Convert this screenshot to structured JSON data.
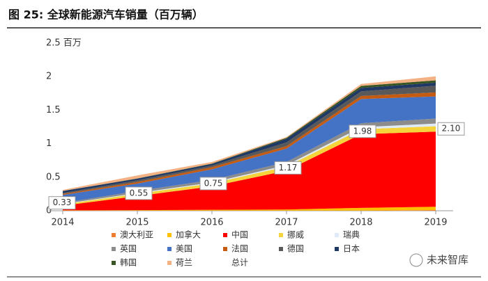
{
  "chart_data": {
    "type": "stacked-area",
    "title": "图 25: 全球新能源汽车销量（百万辆）",
    "categories": [
      "2014",
      "2015",
      "2016",
      "2017",
      "2018",
      "2019"
    ],
    "series": [
      {
        "name": "澳大利亚",
        "color": "#ed7d31",
        "values": [
          0.001,
          0.002,
          0.002,
          0.002,
          0.003,
          0.01
        ]
      },
      {
        "name": "加拿大",
        "color": "#ffc000",
        "values": [
          0.005,
          0.007,
          0.012,
          0.016,
          0.04,
          0.05
        ]
      },
      {
        "name": "中国",
        "color": "#ff0000",
        "values": [
          0.07,
          0.21,
          0.35,
          0.58,
          1.1,
          1.12
        ]
      },
      {
        "name": "挪威",
        "color": "#f5d33b",
        "values": [
          0.02,
          0.035,
          0.045,
          0.062,
          0.073,
          0.08
        ]
      },
      {
        "name": "瑞典",
        "color": "#deebf7",
        "values": [
          0.005,
          0.01,
          0.013,
          0.02,
          0.03,
          0.04
        ]
      },
      {
        "name": "英国",
        "color": "#8c8c8c",
        "values": [
          0.015,
          0.03,
          0.037,
          0.047,
          0.06,
          0.075
        ]
      },
      {
        "name": "美国",
        "color": "#4472c4",
        "values": [
          0.12,
          0.11,
          0.16,
          0.2,
          0.36,
          0.33
        ]
      },
      {
        "name": "法国",
        "color": "#c55a11",
        "values": [
          0.015,
          0.025,
          0.03,
          0.037,
          0.046,
          0.06
        ]
      },
      {
        "name": "德国",
        "color": "#595959",
        "values": [
          0.013,
          0.025,
          0.025,
          0.055,
          0.068,
          0.1
        ]
      },
      {
        "name": "日本",
        "color": "#1f3864",
        "values": [
          0.03,
          0.025,
          0.025,
          0.055,
          0.052,
          0.045
        ]
      },
      {
        "name": "韩国",
        "color": "#375623",
        "values": [
          0.001,
          0.003,
          0.005,
          0.014,
          0.03,
          0.035
        ]
      },
      {
        "name": "荷兰",
        "color": "#f4b183",
        "values": [
          0.015,
          0.045,
          0.024,
          0.011,
          0.028,
          0.06
        ]
      }
    ],
    "total": {
      "name": "总计",
      "values": [
        0.33,
        0.55,
        0.75,
        1.17,
        1.98,
        2.1
      ],
      "value_labels": [
        "0.33",
        "0.55",
        "0.75",
        "1.17",
        "1.98",
        "2.10"
      ]
    },
    "ylim": [
      0,
      2.5
    ],
    "yticks": [
      0,
      0.5,
      1,
      1.5,
      2,
      {
        "value": 2.5,
        "label": "2.5 百万"
      }
    ],
    "watermark": "未来智库"
  }
}
